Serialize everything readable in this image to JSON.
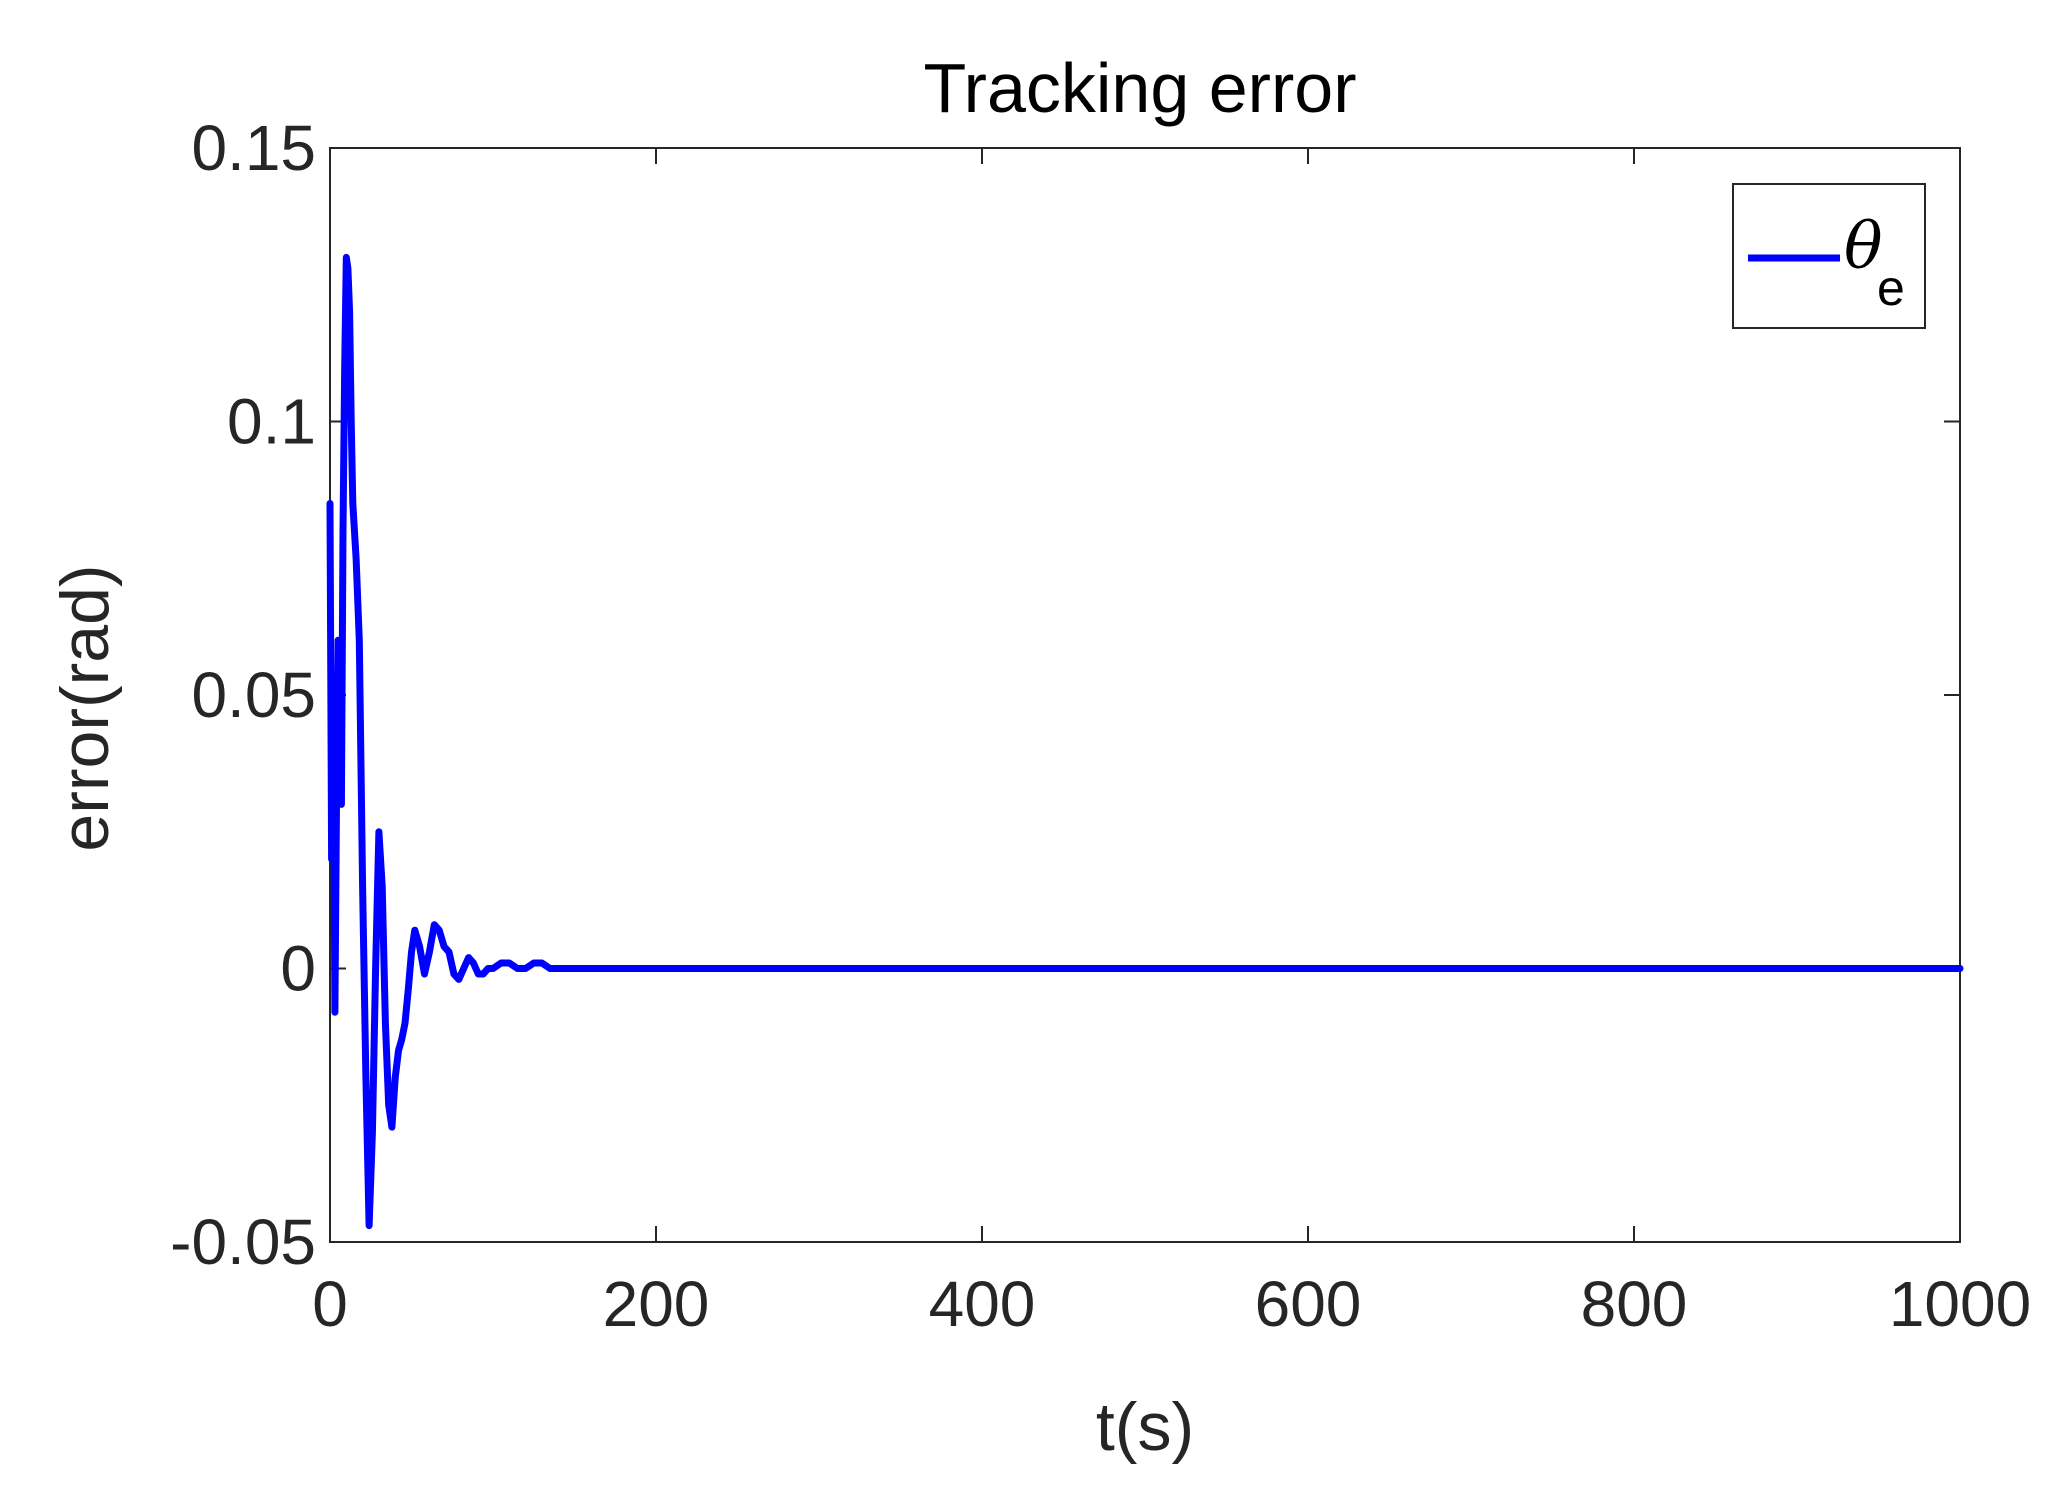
{
  "chart_data": {
    "type": "line",
    "title": "Tracking error",
    "xlabel": "t(s)",
    "ylabel": "error(rad)",
    "xlim": [
      0,
      1000
    ],
    "ylim": [
      -0.05,
      0.15
    ],
    "x_ticks": [
      0,
      200,
      400,
      600,
      800,
      1000
    ],
    "x_tick_labels": [
      "0",
      "200",
      "400",
      "600",
      "800",
      "1000"
    ],
    "y_ticks": [
      -0.05,
      0,
      0.05,
      0.1,
      0.15
    ],
    "y_tick_labels": [
      "-0.05",
      "0",
      "0.05",
      "0.1",
      "0.15"
    ],
    "grid": false,
    "legend_position": "top-right",
    "series": [
      {
        "legend_symbol": "θ",
        "legend_subscript": "e",
        "color": "#0000ff",
        "x": [
          0,
          1,
          2,
          3,
          4,
          5,
          6,
          7,
          8,
          9,
          10,
          11,
          12,
          13,
          14,
          16,
          18,
          20,
          22,
          24,
          26,
          28,
          30,
          32,
          34,
          36,
          38,
          40,
          42,
          44,
          46,
          48,
          50,
          52,
          55,
          58,
          61,
          64,
          67,
          70,
          73,
          76,
          79,
          82,
          85,
          88,
          91,
          94,
          97,
          100,
          105,
          110,
          115,
          120,
          125,
          130,
          135,
          140,
          145,
          150,
          160,
          170,
          180,
          190,
          200,
          220,
          250,
          300,
          400,
          500,
          600,
          700,
          800,
          900,
          1000
        ],
        "y": [
          0.085,
          0.02,
          0.05,
          -0.008,
          0.03,
          0.06,
          0.045,
          0.03,
          0.08,
          0.11,
          0.13,
          0.128,
          0.12,
          0.1,
          0.085,
          0.075,
          0.06,
          0.015,
          -0.02,
          -0.047,
          -0.03,
          0.0,
          0.025,
          0.015,
          -0.01,
          -0.025,
          -0.029,
          -0.02,
          -0.015,
          -0.013,
          -0.01,
          -0.004,
          0.003,
          0.007,
          0.004,
          -0.001,
          0.003,
          0.008,
          0.007,
          0.004,
          0.003,
          -0.001,
          -0.002,
          0.0,
          0.002,
          0.001,
          -0.001,
          -0.001,
          0.0,
          0.0,
          0.001,
          0.001,
          0.0,
          0.0,
          0.001,
          0.001,
          0.0,
          0.0,
          0.0,
          0.0,
          0.0,
          0.0,
          0.0,
          0.0,
          0.0,
          0.0,
          0.0,
          0.0,
          0.0,
          0.0,
          0.0,
          0.0,
          0.0,
          0.0,
          0.0
        ]
      }
    ]
  }
}
